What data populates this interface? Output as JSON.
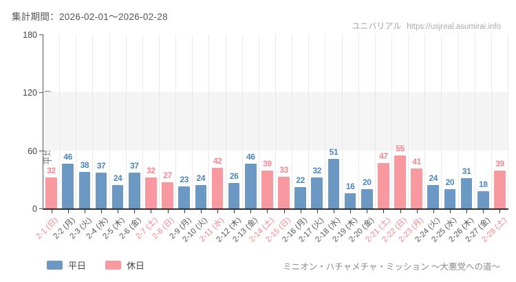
{
  "header": {
    "period_label": "集計期間：2026-02-01～2026-02-28",
    "watermark_site": "ユニバリアル",
    "watermark_url": "https://usjreal.asumirai.info"
  },
  "footer": {
    "attraction": "ミニオン・ハチャメチャ・ミッション ～大悪党への道～"
  },
  "legend": [
    {
      "label": "平日",
      "type": "weekday"
    },
    {
      "label": "休日",
      "type": "holiday"
    }
  ],
  "colors": {
    "weekday_bar": "#6c99c4",
    "holiday_bar": "#f8989f",
    "weekday_value_label": "#4c86bf",
    "holiday_value_label": "#f8858e",
    "weekday_axis_label": "#555555",
    "holiday_axis_label": "#f5838d",
    "band_fill": "#f4f4f4",
    "gridline": "#e9e9e9",
    "axis": "#2e2e2e"
  },
  "chart_data": {
    "type": "bar",
    "title": "集計期間：2026-02-01～2026-02-28",
    "xlabel": "",
    "ylabel": "平均待ち時間（分）",
    "ylim": [
      0,
      180
    ],
    "yticks": [
      0,
      60,
      120,
      180
    ],
    "grid": "vertical-only",
    "shaded_band": {
      "from": 60,
      "to": 120
    },
    "legend_position": "bottom-left",
    "categories": [
      "2-1 (日)",
      "2-2 (月)",
      "2-3 (火)",
      "2-4 (水)",
      "2-5 (木)",
      "2-6 (金)",
      "2-7 (土)",
      "2-8 (日)",
      "2-9 (月)",
      "2-10 (火)",
      "2-11 (水)",
      "2-12 (木)",
      "2-13 (金)",
      "2-14 (土)",
      "2-15 (日)",
      "2-16 (月)",
      "2-17 (火)",
      "2-18 (水)",
      "2-19 (木)",
      "2-20 (金)",
      "2-21 (土)",
      "2-22 (日)",
      "2-23 (月)",
      "2-24 (火)",
      "2-25 (水)",
      "2-26 (木)",
      "2-27 (金)",
      "2-28 (土)"
    ],
    "values": [
      32,
      46,
      38,
      37,
      24,
      37,
      32,
      27,
      23,
      24,
      42,
      26,
      46,
      39,
      33,
      22,
      32,
      51,
      16,
      20,
      47,
      55,
      41,
      24,
      20,
      31,
      18,
      39
    ],
    "day_types": [
      "holiday",
      "weekday",
      "weekday",
      "weekday",
      "weekday",
      "weekday",
      "holiday",
      "holiday",
      "weekday",
      "weekday",
      "holiday",
      "weekday",
      "weekday",
      "holiday",
      "holiday",
      "weekday",
      "weekday",
      "weekday",
      "weekday",
      "weekday",
      "holiday",
      "holiday",
      "holiday",
      "weekday",
      "weekday",
      "weekday",
      "weekday",
      "holiday"
    ]
  }
}
